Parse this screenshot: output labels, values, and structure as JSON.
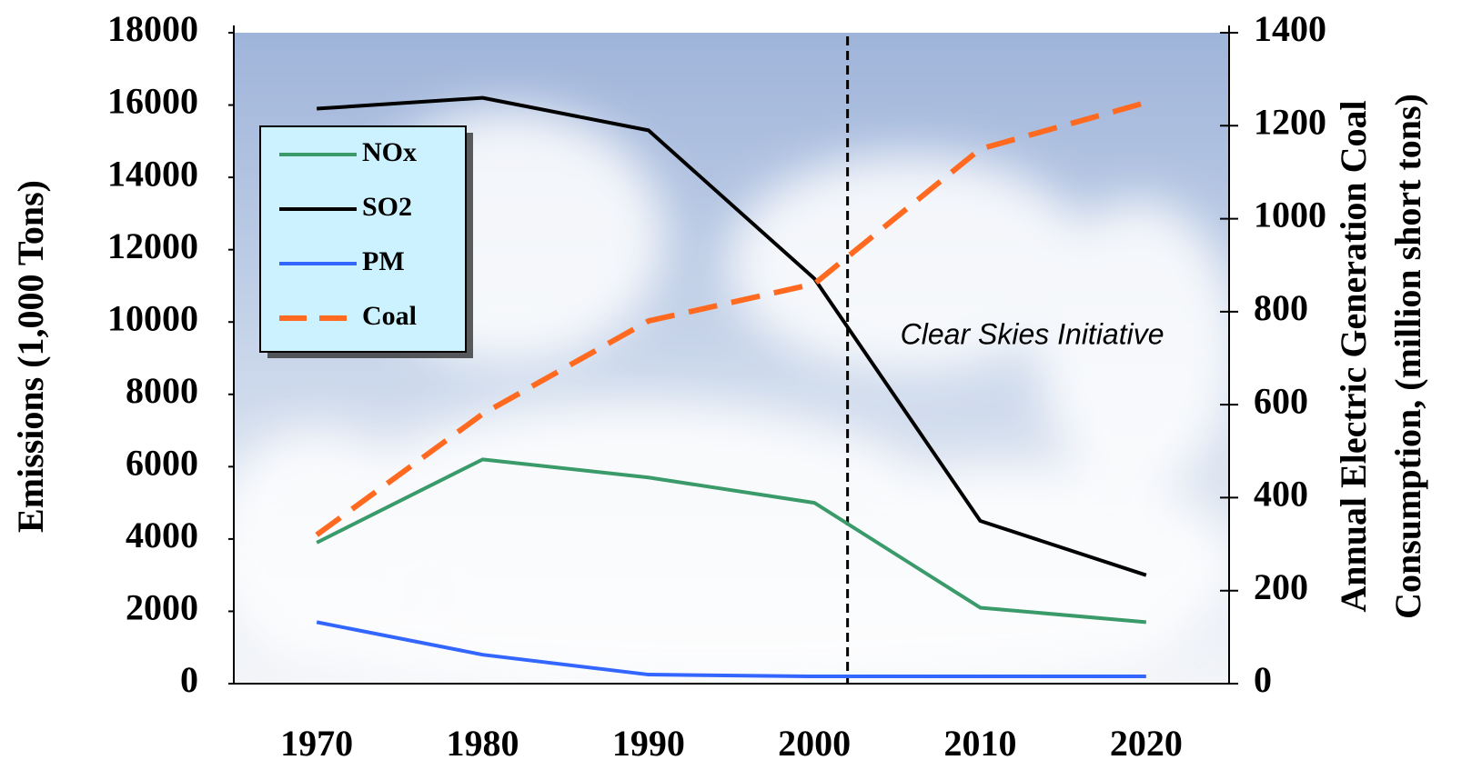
{
  "chart_data": {
    "type": "line",
    "x": [
      1970,
      1980,
      1990,
      2000,
      2010,
      2020
    ],
    "xlim": [
      1965,
      2025
    ],
    "xticks": [
      1970,
      1980,
      1990,
      2000,
      2010,
      2020
    ],
    "ylabel": "Emissions (1,000 Tons)",
    "ylim": [
      0,
      18000
    ],
    "yticks": [
      0,
      2000,
      4000,
      6000,
      8000,
      10000,
      12000,
      14000,
      16000,
      18000
    ],
    "y2label": [
      "Annual Electric Generation Coal",
      "Consumption, (million short tons)"
    ],
    "y2lim": [
      0,
      1400
    ],
    "y2ticks": [
      0,
      200,
      400,
      600,
      800,
      1000,
      1200,
      1400
    ],
    "series": [
      {
        "name": "NOx",
        "color": "#3a9a6a",
        "values": [
          3900,
          6200,
          5700,
          5000,
          2100,
          1700
        ]
      },
      {
        "name": "SO2",
        "color": "#000000",
        "values": [
          15900,
          16200,
          15300,
          11200,
          4500,
          3000
        ]
      },
      {
        "name": "PM",
        "color": "#3366ff",
        "values": [
          1700,
          800,
          250,
          200,
          200,
          200
        ]
      },
      {
        "name": "Coal",
        "color": "#ff6a20",
        "dashed": true,
        "axis": "y2",
        "values": [
          320,
          580,
          780,
          860,
          1150,
          1250
        ]
      }
    ],
    "vline": {
      "x": 2002,
      "label": "Clear Skies Initiative"
    }
  }
}
